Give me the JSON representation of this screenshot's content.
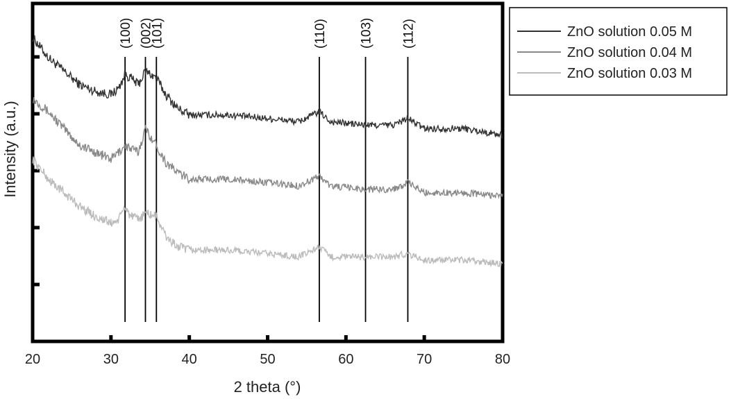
{
  "chart_data": {
    "type": "line",
    "title": "",
    "xlabel": "2 theta (°)",
    "ylabel": "Intensity (a.u.)",
    "xlim": [
      20,
      80
    ],
    "ylim": [
      0,
      100
    ],
    "x_ticks": [
      20,
      30,
      40,
      50,
      60,
      70,
      80
    ],
    "y_tick_count": 5,
    "y_ticks_labeled": false,
    "grid": false,
    "legend_position": "outside-top-right",
    "peaks": [
      {
        "label": "(100)",
        "x": 31.8
      },
      {
        "label": "(002)",
        "x": 34.4
      },
      {
        "label": "(101)",
        "x": 35.8
      },
      {
        "label": "(110)",
        "x": 56.6
      },
      {
        "label": "(103)",
        "x": 62.5
      },
      {
        "label": "(112)",
        "x": 67.9
      }
    ],
    "series": [
      {
        "name": "ZnO solution 0.05 M",
        "color": "#333333",
        "x": [
          20,
          22,
          24,
          26,
          28,
          30,
          31,
          31.8,
          32.5,
          33.5,
          34.4,
          35.8,
          37,
          38.5,
          40,
          45,
          50,
          54,
          56.6,
          58,
          62.5,
          66,
          67.9,
          70,
          75,
          80
        ],
        "y": [
          90,
          84,
          80,
          76,
          74,
          73,
          75,
          79,
          78,
          76,
          80,
          78,
          73,
          69,
          67,
          67,
          66,
          65,
          68,
          65,
          64,
          64,
          66,
          63,
          63,
          61
        ]
      },
      {
        "name": "ZnO solution 0.04 M",
        "color": "#888888",
        "x": [
          20,
          22,
          24,
          26,
          28,
          30,
          31,
          31.8,
          32.5,
          33.5,
          34.4,
          35.8,
          37,
          38.5,
          40,
          45,
          50,
          54,
          56.6,
          58,
          62.5,
          66,
          67.9,
          70,
          75,
          80
        ],
        "y": [
          72,
          68,
          63,
          58,
          56,
          54,
          56,
          58,
          57,
          56,
          63,
          58,
          53,
          50,
          48,
          48,
          47,
          46,
          49,
          46,
          45,
          45,
          47,
          44,
          44,
          43
        ]
      },
      {
        "name": "ZnO solution 0.03 M",
        "color": "#bbbbbb",
        "x": [
          20,
          22,
          24,
          26,
          28,
          30,
          31,
          31.8,
          32.5,
          33.5,
          34.4,
          35.8,
          37,
          38.5,
          40,
          45,
          50,
          54,
          56.6,
          58,
          62.5,
          66,
          67.9,
          70,
          75,
          80
        ],
        "y": [
          54,
          48,
          44,
          40,
          37,
          35,
          36,
          40,
          37,
          36,
          38,
          37,
          31,
          28,
          27,
          27,
          26,
          25,
          28,
          25,
          25,
          25,
          26,
          24,
          24,
          23
        ]
      }
    ]
  }
}
